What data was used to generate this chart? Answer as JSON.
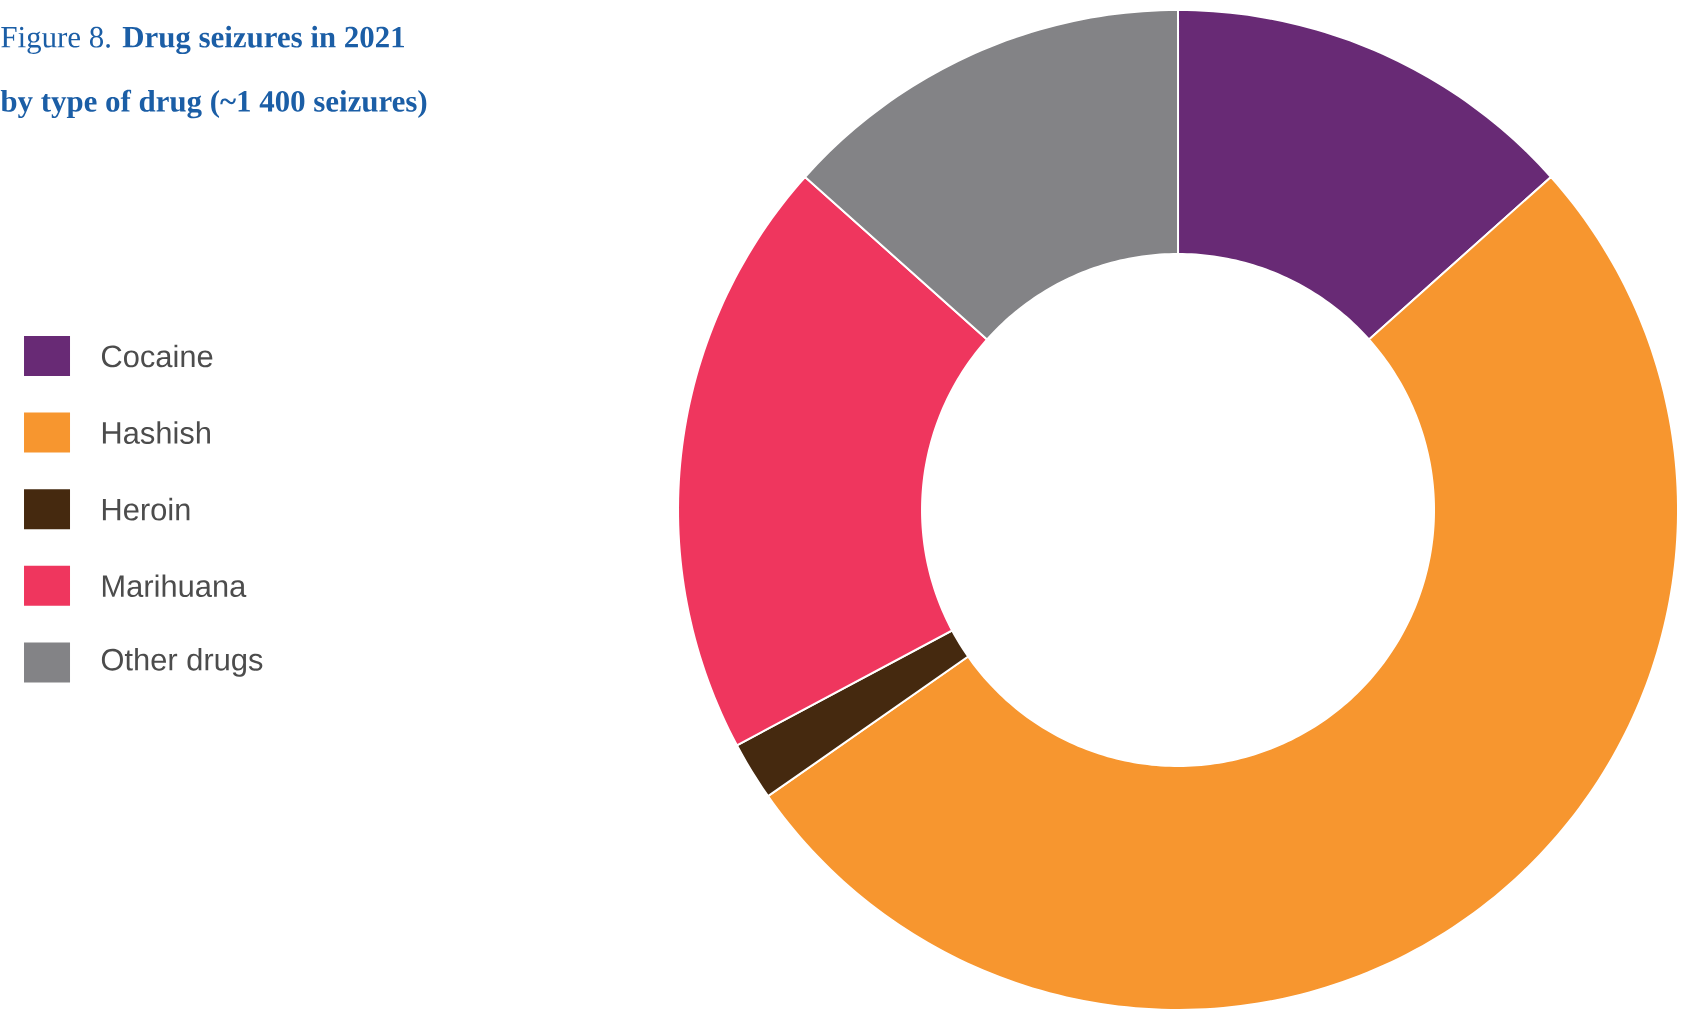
{
  "chart_data": {
    "type": "donut",
    "title": "Figure 8. **Drug seizures in 2021**",
    "subtitle": "by type of drug (~1 400 seizures)",
    "categories": [
      "Cocaine",
      "Hashish",
      "Heroin",
      "Marihuana",
      "Other drugs"
    ],
    "values": [
      13.4,
      51.9,
      1.9,
      19.4,
      13.4
    ],
    "colors": [
      "#682a75",
      "#f7962f",
      "#45290f",
      "#ef365e",
      "#838386"
    ],
    "legend": "left"
  }
}
